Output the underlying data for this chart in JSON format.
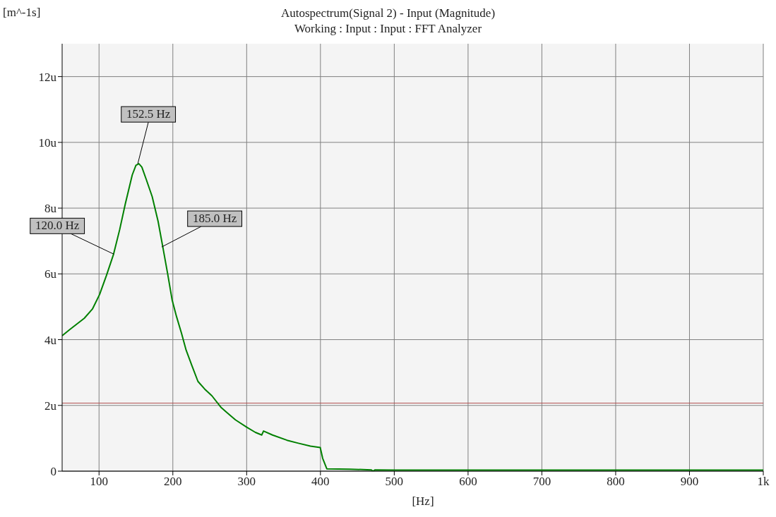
{
  "chart_data": {
    "type": "line",
    "title": "Autospectrum(Signal 2) - Input (Magnitude)",
    "subtitle": "Working : Input : Input : FFT Analyzer",
    "xlabel": "[Hz]",
    "ylabel": "[m^-1s]",
    "xlim": [
      50,
      1000
    ],
    "xticks": [
      100,
      200,
      300,
      400,
      500,
      600,
      700,
      800,
      900,
      {
        "value": 1000,
        "label": "1k"
      }
    ],
    "ylim": [
      0,
      13
    ],
    "yticks": [
      0,
      {
        "value": 2,
        "label": "2u"
      },
      {
        "value": 4,
        "label": "4u"
      },
      {
        "value": 6,
        "label": "6u"
      },
      {
        "value": 8,
        "label": "8u"
      },
      {
        "value": 10,
        "label": "10u"
      },
      {
        "value": 12,
        "label": "12u"
      }
    ],
    "grid": true,
    "marker": "none",
    "line_style": "solid",
    "series": [
      {
        "color": "#008000",
        "x": [
          50,
          60,
          80,
          91,
          100.7,
          110,
          119.7,
          128,
          135.6,
          145,
          150,
          154,
          158,
          164,
          172,
          180,
          186.4,
          193,
          199,
          205,
          211.8,
          218,
          226,
          234,
          243,
          253,
          265.7,
          275,
          284.8,
          300,
          311.8,
          320.4,
          322.9,
          335,
          354.7,
          370,
          386.4,
          399.7,
          403,
          408.6,
          440,
          469,
          471,
          474,
          500,
          600,
          700,
          800,
          900,
          1000
        ],
        "values": [
          4.12,
          4.3,
          4.65,
          4.93,
          5.37,
          5.95,
          6.6,
          7.35,
          8.13,
          9.01,
          9.3,
          9.35,
          9.25,
          8.87,
          8.35,
          7.6,
          6.82,
          6.0,
          5.21,
          4.7,
          4.19,
          3.68,
          3.2,
          2.73,
          2.5,
          2.29,
          1.93,
          1.75,
          1.56,
          1.34,
          1.18,
          1.1,
          1.22,
          1.1,
          0.94,
          0.85,
          0.76,
          0.72,
          0.39,
          0.07,
          0.06,
          0.04,
          0.0,
          0.04,
          0.03,
          0.03,
          0.03,
          0.03,
          0.03,
          0.03
        ]
      }
    ],
    "ref_lines": [
      {
        "axis": "y",
        "value": 2.07,
        "color": "#b05050"
      }
    ],
    "annotations": [
      {
        "text": "152.5 Hz",
        "x": 152.5,
        "y": 9.35
      },
      {
        "text": "120.0 Hz",
        "x": 120,
        "y": 6.6
      },
      {
        "text": "185.0 Hz",
        "x": 185,
        "y": 6.82
      }
    ]
  }
}
